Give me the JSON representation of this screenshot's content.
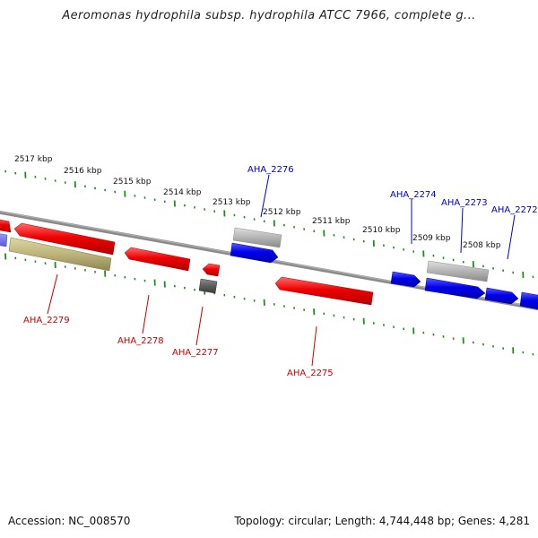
{
  "title": "Aeromonas hydrophila subsp. hydrophila ATCC 7966, complete g...",
  "footer": {
    "accession": "Accession: NC_008570",
    "summary": "Topology: circular; Length: 4,744,448 bp; Genes: 4,281"
  },
  "colors": {
    "forward_strand": "#0000ee",
    "reverse_strand": "#ee0000",
    "other_feature": "#a0a0a0",
    "tick_marks": "#228b22",
    "backbone": "#808080"
  },
  "ruler": {
    "labels": [
      "2517 kbp",
      "2516 kbp",
      "2515 kbp",
      "2514 kbp",
      "2513 kbp",
      "2512 kbp",
      "2511 kbp",
      "2510 kbp",
      "2509 kbp",
      "2508 kbp"
    ]
  },
  "genes": [
    {
      "label": "AHA_2279",
      "strand": "reverse"
    },
    {
      "label": "AHA_2278",
      "strand": "reverse"
    },
    {
      "label": "AHA_2277",
      "strand": "reverse"
    },
    {
      "label": "AHA_2276",
      "strand": "forward"
    },
    {
      "label": "AHA_2275",
      "strand": "reverse"
    },
    {
      "label": "AHA_2274",
      "strand": "forward"
    },
    {
      "label": "AHA_2273",
      "strand": "forward"
    },
    {
      "label": "AHA_2272",
      "strand": "forward"
    }
  ]
}
